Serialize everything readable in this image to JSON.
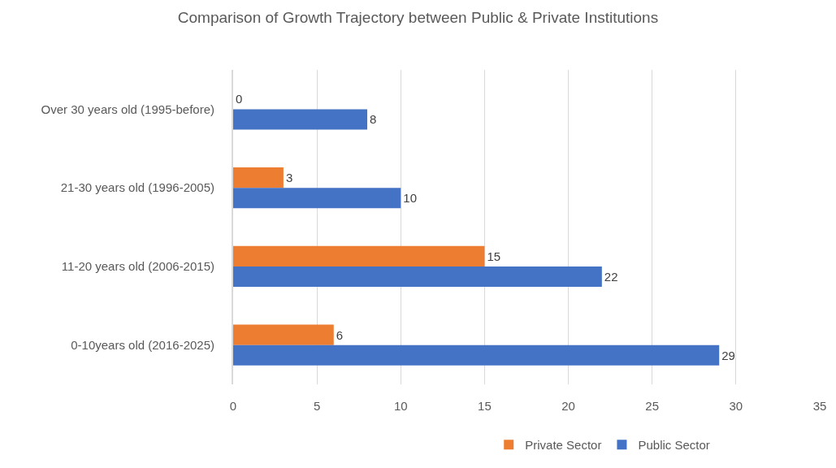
{
  "chart_data": {
    "type": "bar",
    "orientation": "horizontal",
    "title": "Comparison of Growth Trajectory between Public & Private Institutions",
    "categories": [
      "Over 30 years old (1995-before)",
      "21-30 years old (1996-2005)",
      "11-20 years old (2006-2015)",
      "0-10years old (2016-2025)"
    ],
    "series": [
      {
        "name": "Private Sector",
        "color": "#ed7d31",
        "values": [
          0,
          3,
          15,
          6
        ]
      },
      {
        "name": "Public Sector",
        "color": "#4472c4",
        "values": [
          8,
          10,
          22,
          29
        ]
      }
    ],
    "xlim": [
      0,
      35
    ],
    "xticks": [
      0,
      5,
      10,
      15,
      20,
      25,
      30,
      35
    ],
    "grid": "x",
    "legend": "bottom",
    "data_labels": true
  }
}
